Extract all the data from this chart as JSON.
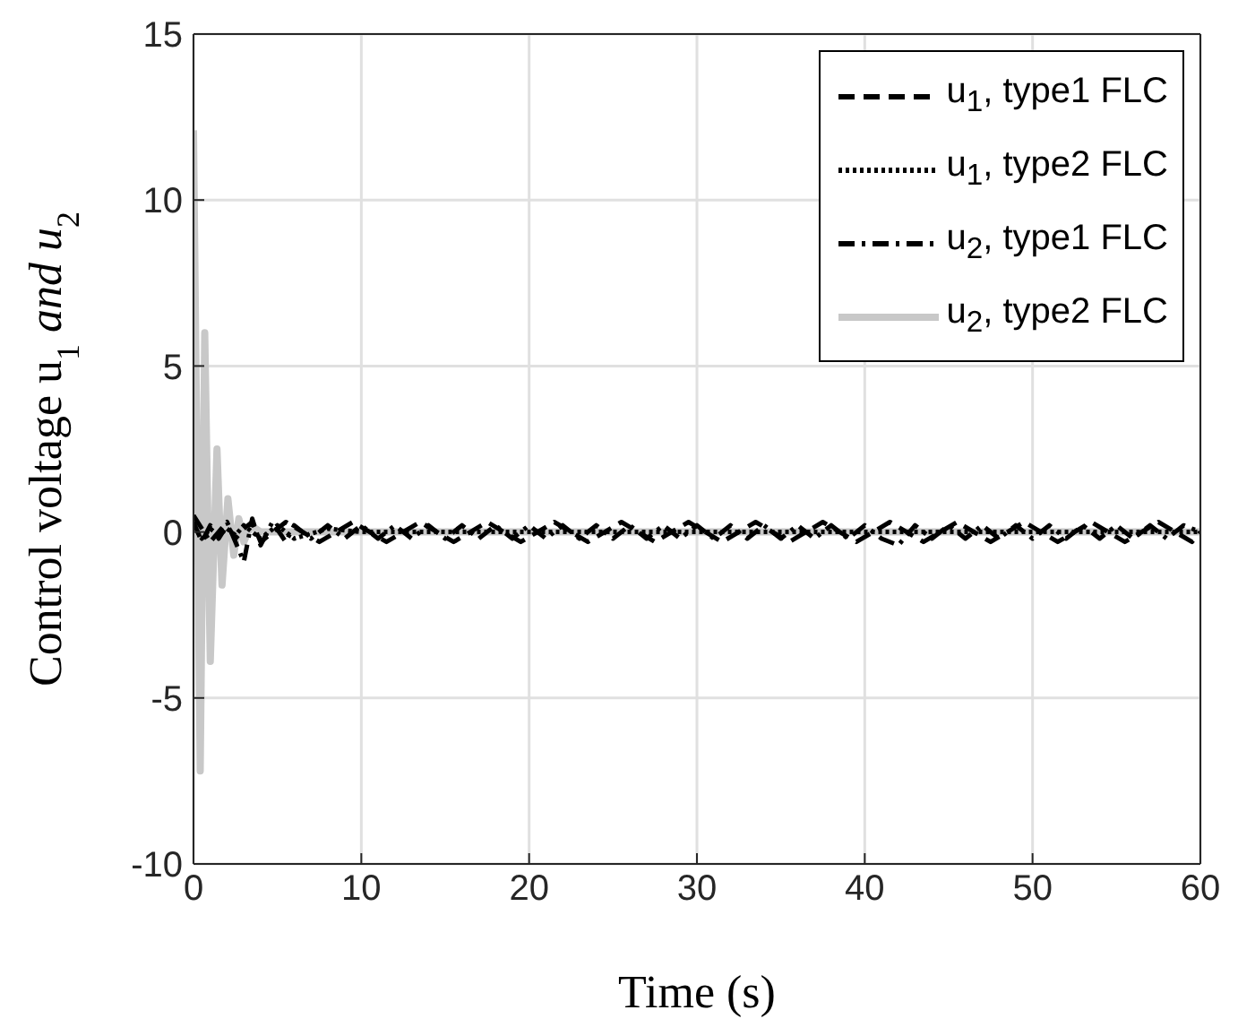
{
  "chart_data": {
    "type": "line",
    "xlabel": "Time (s)",
    "ylabel": "Control voltage u$_{1}$ and u$_{2}$",
    "xlim": [
      0,
      60
    ],
    "ylim": [
      -10,
      15
    ],
    "xticks": [
      0,
      10,
      20,
      30,
      40,
      50,
      60
    ],
    "yticks": [
      -10,
      -5,
      0,
      5,
      10,
      15
    ],
    "grid": true,
    "legend": "top right",
    "marker": "none",
    "series": [
      {
        "name": "u$_{1}$, type1 FLC",
        "color": "#000000",
        "line_style": "dashed",
        "x": [
          0,
          0.5,
          1,
          1.5,
          2,
          2.5,
          3,
          3.5,
          4,
          5.5,
          7.5,
          9.5,
          11.5,
          13.5,
          15.5,
          17.5,
          19.5,
          21.5,
          23.5,
          25.5,
          27.5,
          29.5,
          31.5,
          33.5,
          35.5,
          37.5,
          39.5,
          41.5,
          43.5,
          45.5,
          47.5,
          49.5,
          51.5,
          53.5,
          55.5,
          57.5,
          59.5,
          60
        ],
        "values": [
          0.3,
          -0.3,
          0.2,
          -0.2,
          0.2,
          -0.2,
          0.1,
          0.3,
          -0.3,
          0.3,
          -0.3,
          0.3,
          -0.3,
          0.3,
          -0.3,
          0.3,
          -0.3,
          0.3,
          -0.3,
          0.3,
          -0.3,
          0.3,
          -0.3,
          0.3,
          -0.3,
          0.3,
          -0.3,
          0.3,
          -0.3,
          0.3,
          -0.3,
          0.3,
          -0.3,
          0.3,
          -0.3,
          0.3,
          -0.3,
          0
        ]
      },
      {
        "name": "u$_{1}$, type2 FLC",
        "color": "#000000",
        "line_style": "dotted",
        "x": [
          0,
          0.5,
          1,
          1.5,
          2,
          2.5,
          3,
          4,
          5,
          6,
          8,
          10,
          20,
          30,
          40,
          50,
          60
        ],
        "values": [
          0.2,
          -0.2,
          0.1,
          -0.1,
          0.1,
          -0.1,
          0.2,
          -0.2,
          0.2,
          -0.2,
          0.1,
          0,
          0,
          0,
          0,
          0,
          0
        ]
      },
      {
        "name": "u$_{2}$, type1 FLC",
        "color": "#000000",
        "line_style": "dashdot",
        "x": [
          0,
          1,
          2,
          3,
          3.5,
          4,
          4.7,
          5.5,
          6,
          7,
          8,
          9,
          10,
          11,
          12,
          13,
          14,
          15,
          16,
          17,
          18,
          19,
          20,
          21,
          22,
          23,
          24,
          25,
          26,
          27,
          28,
          29,
          30,
          31,
          32,
          33,
          34,
          35,
          36,
          37,
          38,
          39,
          40,
          41,
          42,
          43,
          44,
          45,
          46,
          47,
          48,
          49,
          50,
          51,
          52,
          53,
          54,
          55,
          56,
          57,
          58,
          59,
          60
        ],
        "values": [
          0.5,
          -0.3,
          0.3,
          -0.9,
          0.4,
          -0.4,
          0.3,
          -0.3,
          0.2,
          -0.2,
          0.2,
          -0.2,
          0.2,
          -0.2,
          0.2,
          -0.2,
          0.2,
          -0.2,
          0.2,
          -0.2,
          0.2,
          -0.2,
          0.2,
          -0.2,
          0.2,
          -0.2,
          0.2,
          -0.2,
          0.2,
          -0.2,
          0.2,
          -0.2,
          0.2,
          -0.2,
          0.2,
          -0.2,
          0.2,
          -0.2,
          0.2,
          -0.2,
          0.2,
          -0.2,
          0.2,
          -0.2,
          -0.4,
          0.2,
          -0.2,
          0.2,
          -0.2,
          0.2,
          -0.2,
          0.2,
          -0.2,
          0.2,
          -0.2,
          0.2,
          -0.2,
          0.2,
          -0.2,
          0.2,
          -0.2,
          0.2,
          0
        ]
      },
      {
        "name": "u$_{2}$, type2 FLC",
        "color": "#c8c8c8",
        "line_style": "solid",
        "x": [
          0,
          0.4,
          0.67,
          1,
          1.4,
          1.7,
          2.05,
          2.4,
          2.7,
          3,
          3.4,
          4,
          5,
          10,
          20,
          30,
          40,
          50,
          60
        ],
        "values": [
          12.1,
          -7.2,
          6,
          -3.9,
          2.5,
          -1.6,
          1,
          -0.7,
          0.4,
          -0.3,
          0.2,
          0,
          0,
          0,
          0,
          0,
          0,
          0,
          0
        ]
      }
    ]
  }
}
